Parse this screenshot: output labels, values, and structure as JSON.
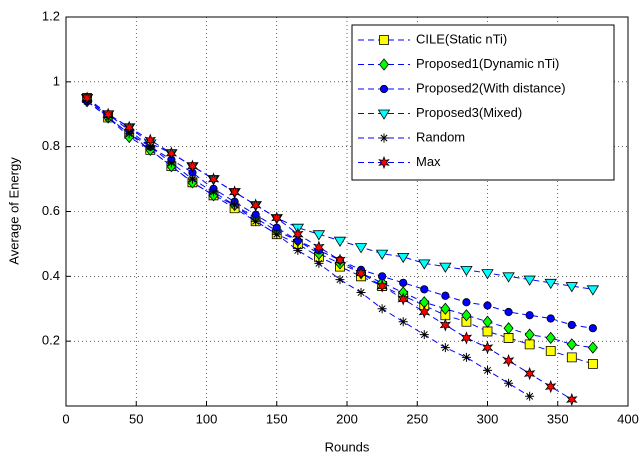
{
  "chart_data": {
    "type": "line",
    "xlabel": "Rounds",
    "ylabel": "Average of Energy",
    "x": [
      15,
      30,
      45,
      60,
      75,
      90,
      105,
      120,
      135,
      150,
      165,
      180,
      195,
      210,
      225,
      240,
      255,
      270,
      285,
      300,
      315,
      330,
      345,
      360,
      375
    ],
    "line_color": "#0000ff",
    "grid": true,
    "legend": "top-right",
    "xlim": [
      0,
      400
    ],
    "xticks": [
      0,
      50,
      100,
      150,
      200,
      250,
      300,
      350,
      400
    ],
    "ylim": [
      0,
      1.2
    ],
    "yticks": [
      0.2,
      0.4,
      0.6,
      0.8,
      1,
      1.2
    ],
    "series": [
      {
        "name": "CILE(Static nTi)",
        "color": "#ffff00",
        "marker": "square",
        "values": [
          0.95,
          0.89,
          0.84,
          0.79,
          0.74,
          0.69,
          0.65,
          0.61,
          0.57,
          0.53,
          0.5,
          0.46,
          0.43,
          0.4,
          0.37,
          0.34,
          0.31,
          0.28,
          0.26,
          0.23,
          0.21,
          0.19,
          0.17,
          0.15,
          0.13
        ]
      },
      {
        "name": "Proposed1(Dynamic nTi)",
        "color": "#00ff00",
        "marker": "diamond",
        "values": [
          0.94,
          0.89,
          0.83,
          0.79,
          0.74,
          0.69,
          0.65,
          0.62,
          0.58,
          0.54,
          0.51,
          0.47,
          0.44,
          0.41,
          0.38,
          0.35,
          0.32,
          0.3,
          0.28,
          0.26,
          0.24,
          0.22,
          0.21,
          0.19,
          0.18
        ]
      },
      {
        "name": "Proposed2(With distance)",
        "color": "#0000ff",
        "marker": "circle",
        "values": [
          0.94,
          0.9,
          0.85,
          0.8,
          0.76,
          0.72,
          0.67,
          0.63,
          0.59,
          0.55,
          0.51,
          0.48,
          0.45,
          0.42,
          0.4,
          0.38,
          0.36,
          0.34,
          0.32,
          0.31,
          0.29,
          0.28,
          0.27,
          0.25,
          0.24
        ]
      },
      {
        "name": "Proposed3(Mixed)",
        "color": "#00ffff",
        "marker": "triangle-down",
        "values": [
          0.95,
          0.9,
          0.86,
          0.81,
          0.78,
          0.74,
          0.7,
          0.66,
          0.62,
          0.58,
          0.55,
          0.53,
          0.51,
          0.49,
          0.47,
          0.46,
          0.44,
          0.43,
          0.42,
          0.41,
          0.4,
          0.39,
          0.38,
          0.37,
          0.36
        ]
      },
      {
        "name": "Random",
        "color": "#000000",
        "marker": "asterisk",
        "values": [
          0.94,
          0.89,
          0.84,
          0.8,
          0.75,
          0.7,
          0.66,
          0.62,
          0.57,
          0.53,
          0.48,
          0.44,
          0.39,
          0.35,
          0.3,
          0.26,
          0.22,
          0.18,
          0.15,
          0.11,
          0.07,
          0.03,
          null,
          null,
          null
        ]
      },
      {
        "name": "Max",
        "color": "#ff0000",
        "marker": "hexagram",
        "values": [
          0.95,
          0.9,
          0.86,
          0.82,
          0.78,
          0.74,
          0.7,
          0.66,
          0.62,
          0.58,
          0.53,
          0.49,
          0.45,
          0.41,
          0.37,
          0.33,
          0.29,
          0.25,
          0.21,
          0.18,
          0.14,
          0.1,
          0.06,
          0.02,
          null
        ]
      }
    ]
  }
}
